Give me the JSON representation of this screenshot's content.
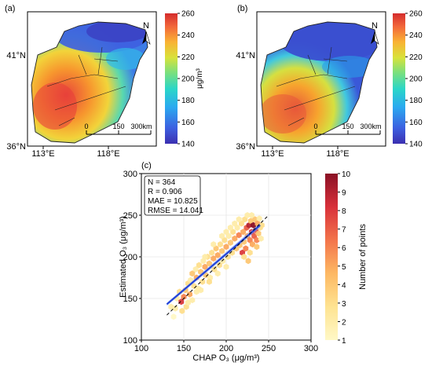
{
  "panels": {
    "a": {
      "label": "(a)",
      "lat_label": "41°N",
      "lat_label_bottom": "36°N",
      "lon_labels": [
        "113°E",
        "118°E"
      ],
      "north_label": "N",
      "scale_ticks": [
        "0",
        "150",
        "300km"
      ],
      "colorbar": {
        "ticks": [
          140,
          160,
          180,
          200,
          220,
          240,
          260
        ],
        "unit": "μg/m³",
        "range": [
          140,
          260
        ]
      }
    },
    "b": {
      "label": "(b)",
      "lat_label": "41°N",
      "lat_label_bottom": "36°N",
      "lon_labels": [
        "113°E",
        "118°E"
      ],
      "north_label": "N",
      "scale_ticks": [
        "0",
        "150",
        "300km"
      ],
      "colorbar": {
        "ticks": [
          140,
          160,
          180,
          200,
          220,
          240,
          260
        ],
        "unit": "μg/m³",
        "range": [
          140,
          260
        ]
      }
    }
  },
  "scatter_label": "(c)",
  "chart_data": {
    "type": "scatter",
    "xlabel": "CHAP O₃ (μg/m³)",
    "ylabel": "Estimated O₃ (μg/m³)",
    "xlim": [
      100,
      300
    ],
    "ylim": [
      100,
      300
    ],
    "x_ticks": [
      100,
      150,
      200,
      250,
      300
    ],
    "y_ticks": [
      100,
      150,
      200,
      250,
      300
    ],
    "stats": [
      "N = 364",
      "R = 0.906",
      "MAE = 10.825",
      "RMSE = 14.041"
    ],
    "colorbar": {
      "label": "Number of points",
      "ticks": [
        1,
        2,
        3,
        4,
        5,
        6,
        7,
        8,
        9,
        10
      ]
    },
    "fit_line": {
      "x": [
        130,
        240
      ],
      "y": [
        143,
        238
      ]
    },
    "one_to_one": [
      130,
      250
    ],
    "points": [
      [
        135,
        140,
        2
      ],
      [
        138,
        128,
        1
      ],
      [
        142,
        150,
        2
      ],
      [
        145,
        158,
        3
      ],
      [
        147,
        146,
        8
      ],
      [
        150,
        152,
        6
      ],
      [
        152,
        160,
        4
      ],
      [
        153,
        140,
        3
      ],
      [
        155,
        168,
        3
      ],
      [
        157,
        155,
        5
      ],
      [
        158,
        172,
        2
      ],
      [
        160,
        180,
        4
      ],
      [
        162,
        165,
        3
      ],
      [
        164,
        185,
        2
      ],
      [
        165,
        175,
        5
      ],
      [
        167,
        162,
        2
      ],
      [
        168,
        190,
        3
      ],
      [
        170,
        182,
        4
      ],
      [
        172,
        170,
        3
      ],
      [
        173,
        195,
        2
      ],
      [
        175,
        188,
        5
      ],
      [
        176,
        178,
        4
      ],
      [
        178,
        200,
        3
      ],
      [
        180,
        192,
        4
      ],
      [
        181,
        175,
        2
      ],
      [
        183,
        205,
        3
      ],
      [
        185,
        198,
        5
      ],
      [
        186,
        185,
        3
      ],
      [
        188,
        210,
        4
      ],
      [
        190,
        202,
        5
      ],
      [
        192,
        190,
        3
      ],
      [
        193,
        215,
        3
      ],
      [
        195,
        207,
        4
      ],
      [
        196,
        195,
        2
      ],
      [
        198,
        220,
        3
      ],
      [
        200,
        212,
        5
      ],
      [
        202,
        200,
        3
      ],
      [
        203,
        225,
        2
      ],
      [
        205,
        217,
        4
      ],
      [
        207,
        205,
        3
      ],
      [
        208,
        230,
        3
      ],
      [
        210,
        222,
        5
      ],
      [
        212,
        210,
        4
      ],
      [
        213,
        235,
        2
      ],
      [
        215,
        226,
        6
      ],
      [
        216,
        214,
        4
      ],
      [
        218,
        240,
        3
      ],
      [
        219,
        205,
        8
      ],
      [
        220,
        230,
        5
      ],
      [
        221,
        218,
        4
      ],
      [
        222,
        245,
        3
      ],
      [
        223,
        210,
        6
      ],
      [
        224,
        235,
        7
      ],
      [
        225,
        225,
        5
      ],
      [
        226,
        195,
        4
      ],
      [
        227,
        238,
        9
      ],
      [
        228,
        220,
        6
      ],
      [
        229,
        243,
        4
      ],
      [
        230,
        230,
        8
      ],
      [
        231,
        215,
        5
      ],
      [
        232,
        238,
        10
      ],
      [
        233,
        225,
        7
      ],
      [
        234,
        245,
        4
      ],
      [
        235,
        232,
        8
      ],
      [
        236,
        220,
        6
      ],
      [
        237,
        240,
        5
      ],
      [
        238,
        228,
        4
      ],
      [
        239,
        246,
        2
      ],
      [
        240,
        235,
        3
      ],
      [
        241,
        222,
        2
      ],
      [
        242,
        238,
        3
      ],
      [
        160,
        148,
        2
      ],
      [
        165,
        158,
        2
      ],
      [
        170,
        160,
        2
      ],
      [
        180,
        170,
        3
      ],
      [
        190,
        180,
        2
      ],
      [
        200,
        188,
        2
      ],
      [
        175,
        200,
        2
      ],
      [
        185,
        215,
        2
      ],
      [
        195,
        225,
        2
      ],
      [
        205,
        235,
        2
      ],
      [
        215,
        245,
        2
      ],
      [
        140,
        138,
        2
      ],
      [
        148,
        135,
        3
      ],
      [
        155,
        145,
        2
      ],
      [
        200,
        230,
        2
      ],
      [
        210,
        240,
        2
      ],
      [
        225,
        250,
        2
      ],
      [
        230,
        250,
        2
      ],
      [
        228,
        205,
        3
      ],
      [
        236,
        212,
        4
      ],
      [
        221,
        200,
        3
      ]
    ]
  }
}
